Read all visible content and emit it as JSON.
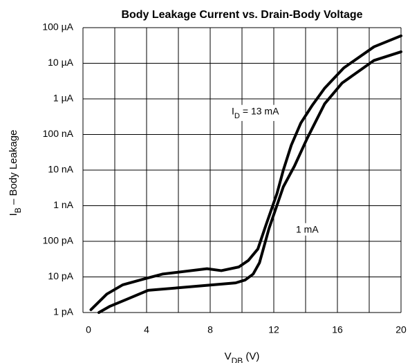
{
  "chart_data": {
    "type": "line",
    "title": "Body Leakage Current vs. Drain-Body Voltage",
    "xlabel": "V_DB (V)",
    "ylabel": "I_B – Body Leakage",
    "xlim": [
      0,
      20
    ],
    "xticks": [
      0,
      4,
      8,
      12,
      16,
      20
    ],
    "xminor": [
      2,
      6,
      10,
      14,
      18
    ],
    "ylim": [
      1e-12,
      0.0001
    ],
    "ylog": true,
    "yticks": [
      {
        "value": 1e-12,
        "label": "1 pA"
      },
      {
        "value": 1e-11,
        "label": "10 pA"
      },
      {
        "value": 1e-10,
        "label": "100 pA"
      },
      {
        "value": 1e-09,
        "label": "1 nA"
      },
      {
        "value": 1e-08,
        "label": "10 nA"
      },
      {
        "value": 1e-07,
        "label": "100 nA"
      },
      {
        "value": 1e-06,
        "label": "1 µA"
      },
      {
        "value": 1e-05,
        "label": "10 µA"
      },
      {
        "value": 0.0001,
        "label": "100 µA"
      }
    ],
    "grid": true,
    "series": [
      {
        "name": "I_D = 13 mA",
        "color": "#000000",
        "x": [
          0.5,
          1.5,
          2.5,
          3.9,
          5.0,
          7.8,
          8.7,
          9.8,
          10.4,
          11.0,
          11.5,
          12.2,
          12.6,
          13.1,
          13.7,
          14.4,
          15.2,
          16.4,
          18.3,
          20
        ],
        "values": [
          1.2e-12,
          3.3e-12,
          6e-12,
          8.9e-12,
          1.2e-11,
          1.7e-11,
          1.5e-11,
          1.9e-11,
          2.9e-11,
          6.1e-11,
          2.8e-10,
          2.2e-09,
          1e-08,
          5e-08,
          2.1e-07,
          6.4e-07,
          2e-06,
          7.4e-06,
          2.9e-05,
          5.9e-05
        ]
      },
      {
        "name": "1 mA",
        "color": "#000000",
        "x": [
          1.0,
          1.7,
          2.8,
          4.1,
          6.1,
          9.6,
          10.2,
          10.7,
          11.1,
          11.7,
          12.6,
          13.3,
          14.1,
          15.2,
          16.3,
          18.3,
          20
        ],
        "values": [
          1e-12,
          1.5e-12,
          2.4e-12,
          4.2e-12,
          5e-12,
          6.8e-12,
          8.2e-12,
          1.2e-11,
          2.5e-11,
          2.3e-10,
          3.4e-09,
          1.3e-08,
          7.8e-08,
          7.3e-07,
          2.8e-06,
          1.2e-05,
          2.1e-05
        ]
      }
    ]
  }
}
